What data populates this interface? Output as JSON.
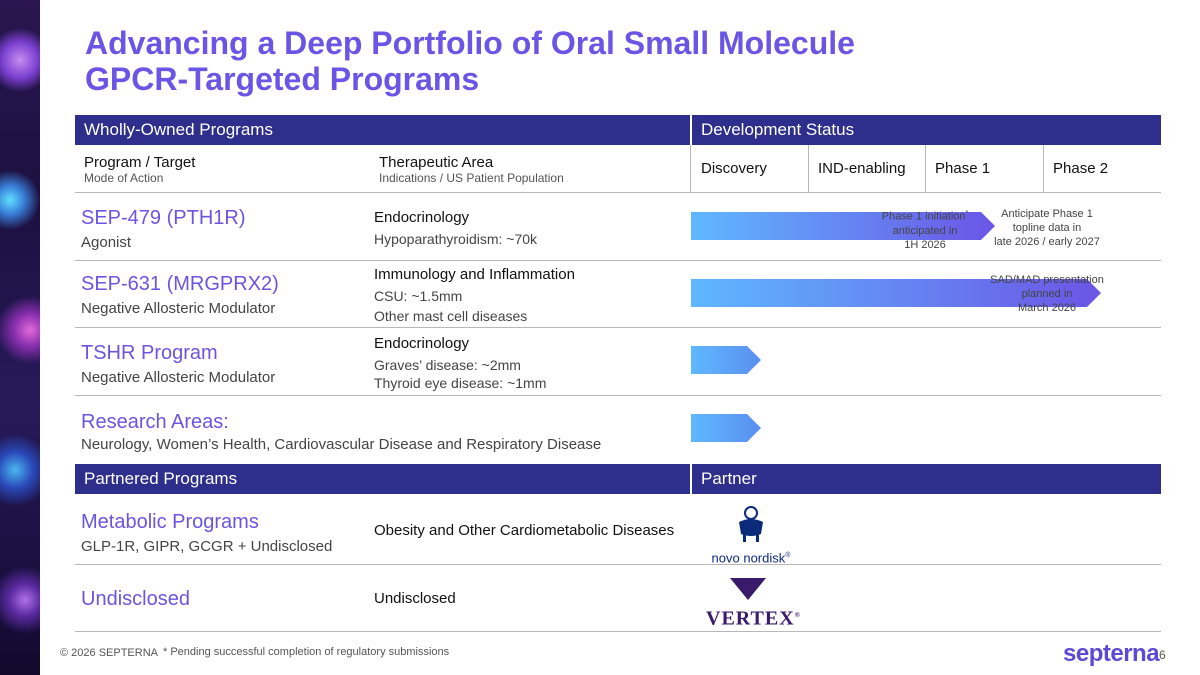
{
  "title_line1": "Advancing a Deep Portfolio of Oral Small Molecule",
  "title_line2": "GPCR-Targeted Programs",
  "header": {
    "wholly_owned": "Wholly-Owned Programs",
    "development_status": "Development Status",
    "program_target": "Program / Target",
    "mode_of_action": "Mode of Action",
    "therapeutic_area": "Therapeutic Area",
    "indications": "Indications / US Patient Population",
    "stages": [
      "Discovery",
      "IND-enabling",
      "Phase 1",
      "Phase 2"
    ]
  },
  "programs": [
    {
      "name": "SEP-479 (PTH1R)",
      "moa": "Agonist",
      "area": "Endocrinology",
      "indications": [
        "Hypoparathyroidism: ~70k"
      ],
      "progress_stage": 2.6,
      "notes": [
        {
          "text": [
            "Phase 1 initiation",
            "anticipated in",
            "1H 2026"
          ],
          "asterisk": "*"
        },
        {
          "text": [
            "Anticipate Phase 1",
            "topline data in",
            "late 2026 / early 2027"
          ]
        }
      ]
    },
    {
      "name": "SEP-631 (MRGPRX2)",
      "moa": "Negative Allosteric Modulator",
      "area": "Immunology and Inflammation",
      "indications": [
        "CSU: ~1.5mm",
        "Other mast cell diseases"
      ],
      "progress_stage": 3.5,
      "notes": [
        {
          "text": [
            "SAD/MAD presentation",
            "planned in",
            "March 2026"
          ]
        }
      ]
    },
    {
      "name": "TSHR Program",
      "moa": "Negative Allosteric Modulator",
      "area": "Endocrinology",
      "indications": [
        "Graves’ disease: ~2mm",
        "Thyroid eye disease: ~1mm"
      ],
      "progress_stage": 0.6
    }
  ],
  "research": {
    "label": "Research Areas:",
    "text": "Neurology, Women’s Health, Cardiovascular Disease and Respiratory Disease",
    "progress_stage": 0.6
  },
  "partnered": {
    "header": "Partnered Programs",
    "partner_header": "Partner",
    "rows": [
      {
        "name": "Metabolic Programs",
        "sub": "GLP-1R, GIPR, GCGR + Undisclosed",
        "area": "Obesity and Other Cardiometabolic Diseases",
        "partner": "novo nordisk",
        "partner_mark": "®"
      },
      {
        "name": "Undisclosed",
        "sub": "",
        "area": "Undisclosed",
        "partner": "VERTEX",
        "partner_mark": "®"
      }
    ]
  },
  "footer": {
    "copyright": "© 2026 SEPTERNA",
    "footnote": "* Pending successful completion of regulatory submissions",
    "logo": "septerna",
    "page": "6"
  },
  "colors": {
    "title": "#6b55e6",
    "band": "#2e2e8c",
    "program_name": "#6a55e0",
    "arrow_start": "#5fb8ff",
    "arrow_end": "#6b55e6"
  }
}
